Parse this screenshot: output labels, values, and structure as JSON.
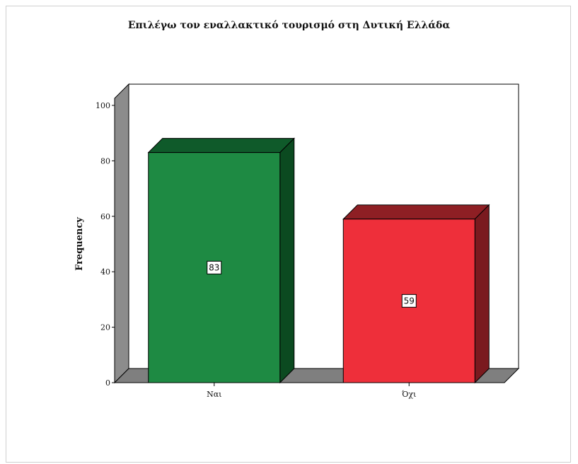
{
  "chart_data": {
    "type": "bar",
    "title": "Επιλέγω τον εναλλακτικό τουρισμό στη Δυτική Ελλάδα",
    "xlabel": "",
    "ylabel": "Frequency",
    "categories": [
      "Ναι",
      "Όχι"
    ],
    "values": [
      83,
      59
    ],
    "data_labels": [
      "83",
      "59"
    ],
    "ylim": [
      0,
      100
    ],
    "yticks": [
      "0",
      "20",
      "40",
      "60",
      "80",
      "100"
    ],
    "style": "3d",
    "grid": false,
    "legend": "none",
    "colors": {
      "bars": [
        "#1e8a43",
        "#ee2f3a"
      ],
      "bar_tops": [
        "#0f5a2a",
        "#8e1f24"
      ],
      "bar_sides": [
        "#0b4a20",
        "#7a1a1f"
      ],
      "floor": "#7f7f7f",
      "wall_side": "#8c8c8c"
    }
  }
}
